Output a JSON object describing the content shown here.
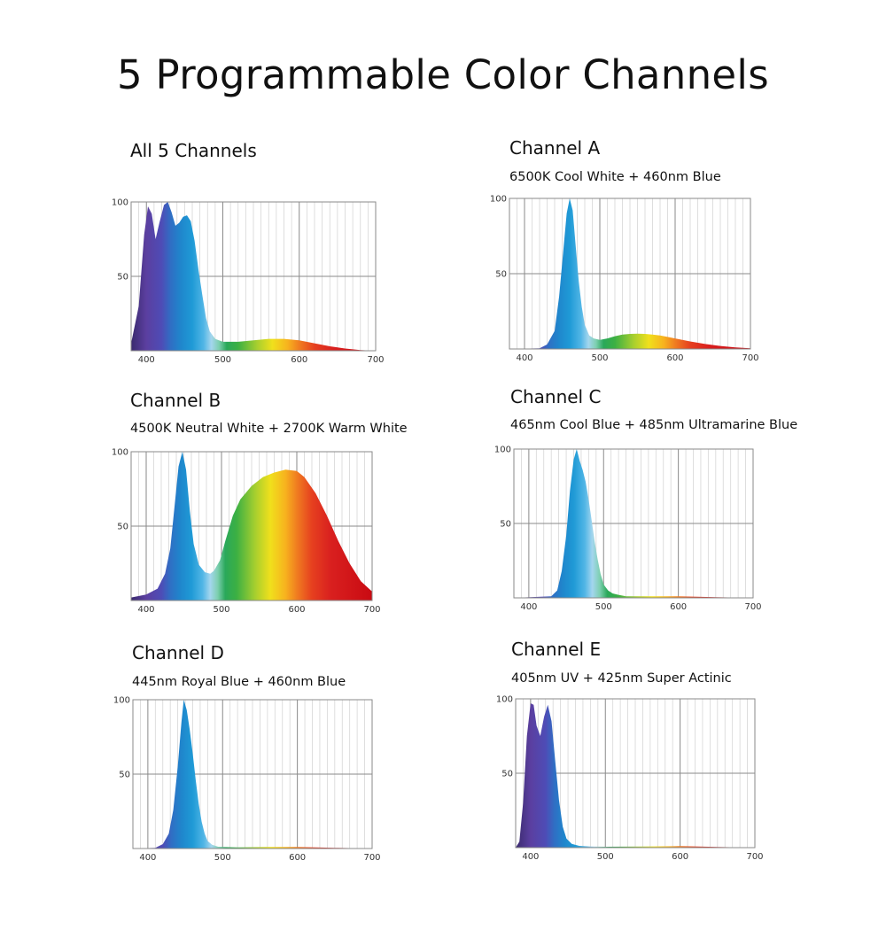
{
  "page": {
    "title": "5 Programmable Color Channels"
  },
  "chart_data": [
    {
      "id": "all",
      "type": "area",
      "title": "All 5 Channels",
      "subtitle": "",
      "xlim": [
        380,
        700
      ],
      "ylim": [
        0,
        100
      ],
      "x_ticks": [
        400,
        500,
        600,
        700
      ],
      "y_ticks": [
        50,
        100
      ],
      "x": [
        380,
        390,
        397,
        402,
        407,
        412,
        417,
        423,
        428,
        433,
        438,
        443,
        448,
        453,
        458,
        463,
        468,
        473,
        478,
        483,
        490,
        500,
        520,
        540,
        560,
        580,
        600,
        620,
        640,
        660,
        680,
        700
      ],
      "y": [
        5,
        30,
        78,
        97,
        92,
        75,
        86,
        98,
        100,
        93,
        84,
        86,
        90,
        91,
        87,
        74,
        55,
        38,
        22,
        13,
        8,
        6,
        6,
        7,
        8,
        8,
        7,
        5,
        3,
        1.5,
        0.5,
        0
      ]
    },
    {
      "id": "A",
      "type": "area",
      "title": "Channel A",
      "subtitle": "6500K Cool White + 460nm Blue",
      "xlim": [
        380,
        700
      ],
      "ylim": [
        0,
        100
      ],
      "x_ticks": [
        400,
        500,
        600,
        700
      ],
      "y_ticks": [
        50,
        100
      ],
      "x": [
        380,
        420,
        430,
        440,
        446,
        452,
        456,
        460,
        464,
        468,
        472,
        476,
        480,
        486,
        492,
        500,
        510,
        520,
        530,
        540,
        550,
        560,
        570,
        580,
        590,
        600,
        620,
        640,
        660,
        680,
        700
      ],
      "y": [
        0,
        0.5,
        3,
        12,
        35,
        68,
        90,
        100,
        92,
        68,
        45,
        28,
        16,
        9,
        7,
        6,
        7,
        8.5,
        9.5,
        10,
        10.2,
        10,
        9.5,
        9,
        8,
        7,
        5,
        3.3,
        2,
        1,
        0.5
      ]
    },
    {
      "id": "B",
      "type": "area",
      "title": "Channel B",
      "subtitle": "4500K Neutral White + 2700K Warm White",
      "xlim": [
        380,
        700
      ],
      "ylim": [
        0,
        100
      ],
      "x_ticks": [
        400,
        500,
        600,
        700
      ],
      "y_ticks": [
        50,
        100
      ],
      "x": [
        380,
        400,
        415,
        425,
        432,
        438,
        443,
        448,
        453,
        458,
        463,
        470,
        478,
        485,
        490,
        498,
        505,
        515,
        525,
        540,
        555,
        570,
        585,
        600,
        610,
        625,
        640,
        655,
        670,
        685,
        700
      ],
      "y": [
        2,
        4,
        8,
        18,
        35,
        65,
        90,
        100,
        88,
        60,
        38,
        24,
        19,
        18,
        20,
        27,
        40,
        57,
        68,
        77,
        83,
        86,
        88,
        87,
        83,
        72,
        57,
        40,
        25,
        13,
        6
      ]
    },
    {
      "id": "C",
      "type": "area",
      "title": "Channel C",
      "subtitle": "465nm Cool Blue + 485nm Ultramarine Blue",
      "xlim": [
        380,
        700
      ],
      "ylim": [
        0,
        100
      ],
      "x_ticks": [
        400,
        500,
        600,
        700
      ],
      "y_ticks": [
        50,
        100
      ],
      "x": [
        380,
        430,
        438,
        444,
        450,
        455,
        460,
        464,
        468,
        472,
        476,
        480,
        484,
        488,
        492,
        496,
        500,
        506,
        512,
        520,
        530,
        560,
        600,
        650,
        700
      ],
      "y": [
        0,
        1,
        5,
        18,
        42,
        72,
        93,
        100,
        92,
        86,
        78,
        66,
        52,
        38,
        26,
        16,
        9,
        5,
        3,
        2,
        1,
        1,
        1,
        0.5,
        0
      ]
    },
    {
      "id": "D",
      "type": "area",
      "title": "Channel D",
      "subtitle": "445nm Royal Blue + 460nm Blue",
      "xlim": [
        380,
        700
      ],
      "ylim": [
        0,
        100
      ],
      "x_ticks": [
        400,
        500,
        600,
        700
      ],
      "y_ticks": [
        50,
        100
      ],
      "x": [
        380,
        410,
        420,
        428,
        434,
        440,
        445,
        448,
        452,
        456,
        460,
        464,
        468,
        472,
        476,
        480,
        486,
        494,
        500,
        520,
        560,
        600,
        650,
        700
      ],
      "y": [
        0,
        0.5,
        3,
        10,
        26,
        55,
        85,
        100,
        93,
        80,
        64,
        46,
        30,
        18,
        10,
        5,
        2.5,
        1.2,
        1,
        0.8,
        1,
        1,
        0.5,
        0
      ]
    },
    {
      "id": "E",
      "type": "area",
      "title": "Channel E",
      "subtitle": "405nm UV + 425nm Super Actinic",
      "xlim": [
        380,
        700
      ],
      "ylim": [
        0,
        100
      ],
      "x_ticks": [
        400,
        500,
        600,
        700
      ],
      "y_ticks": [
        50,
        100
      ],
      "x": [
        380,
        385,
        390,
        395,
        400,
        404,
        408,
        413,
        418,
        423,
        428,
        433,
        438,
        443,
        448,
        455,
        465,
        480,
        500,
        550,
        600,
        650,
        700
      ],
      "y": [
        0,
        4,
        30,
        75,
        97,
        96,
        82,
        75,
        88,
        96,
        85,
        58,
        32,
        14,
        6,
        2.5,
        1.2,
        0.8,
        0.6,
        0.8,
        1,
        0.5,
        0
      ]
    }
  ]
}
